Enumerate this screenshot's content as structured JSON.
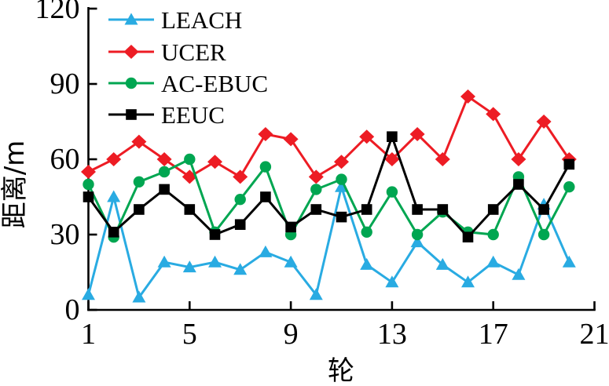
{
  "chart_data": {
    "type": "line",
    "title": "",
    "xlabel": "轮",
    "ylabel": "距离/m",
    "xlim": [
      1,
      21
    ],
    "ylim": [
      0,
      120
    ],
    "x_ticks": [
      1,
      5,
      9,
      13,
      17,
      21
    ],
    "y_ticks": [
      0,
      30,
      60,
      90,
      120
    ],
    "grid": false,
    "legend_position": "top-left",
    "axis_color": "#000000",
    "x": [
      1,
      2,
      3,
      4,
      5,
      6,
      7,
      8,
      9,
      10,
      11,
      12,
      13,
      14,
      15,
      16,
      17,
      18,
      19,
      20
    ],
    "series": [
      {
        "name": "LEACH",
        "color": "#29ABE2",
        "marker": "triangle",
        "values": [
          6,
          45,
          5,
          19,
          17,
          19,
          16,
          23,
          19,
          6,
          49,
          18,
          11,
          27,
          18,
          11,
          19,
          14,
          42,
          19
        ]
      },
      {
        "name": "UCER",
        "color": "#ED1C24",
        "marker": "diamond",
        "values": [
          55,
          60,
          67,
          60,
          53,
          59,
          53,
          70,
          68,
          53,
          59,
          69,
          60,
          70,
          60,
          85,
          78,
          60,
          75,
          60
        ]
      },
      {
        "name": "AC-EBUC",
        "color": "#00A651",
        "marker": "circle",
        "values": [
          50,
          29,
          51,
          55,
          60,
          31,
          44,
          57,
          30,
          48,
          52,
          31,
          47,
          30,
          39,
          31,
          30,
          53,
          30,
          49
        ]
      },
      {
        "name": "EEUC",
        "color": "#000000",
        "marker": "square",
        "values": [
          45,
          31,
          40,
          48,
          40,
          30,
          34,
          45,
          33,
          40,
          37,
          40,
          69,
          40,
          40,
          29,
          40,
          50,
          40,
          58
        ]
      }
    ]
  }
}
